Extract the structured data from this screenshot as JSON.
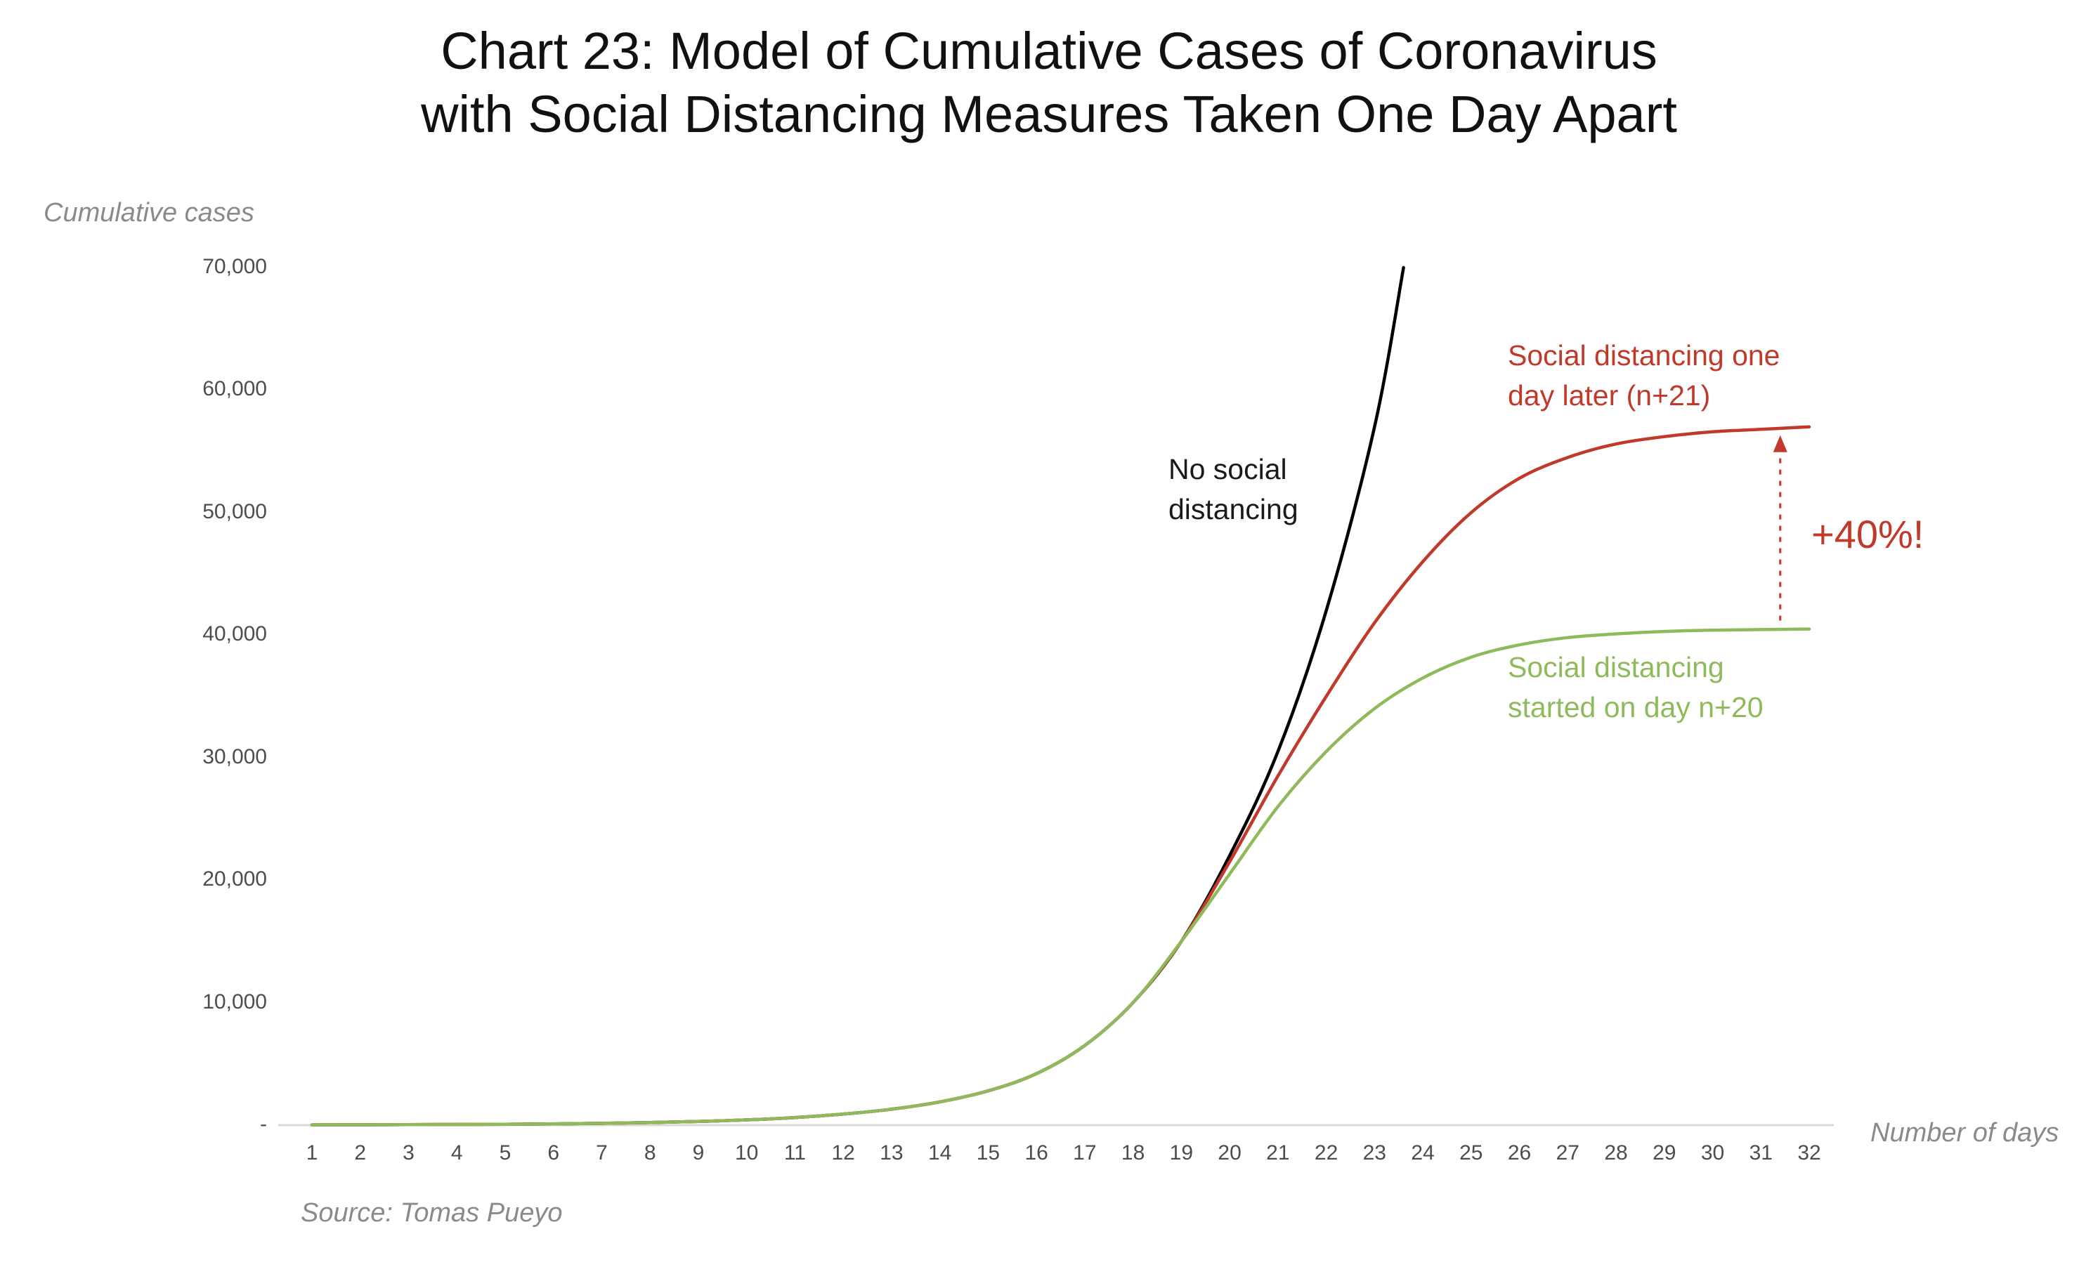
{
  "page": {
    "title_line1": "Chart 23: Model of Cumulative Cases of Coronavirus",
    "title_line2": "with Social Distancing Measures Taken One Day Apart",
    "source": "Source: Tomas Pueyo"
  },
  "colors": {
    "black": "#000000",
    "red": "#c0392b",
    "green": "#8fba5b",
    "axis_text": "#4d4d4d",
    "muted_text": "#8a8a8a",
    "baseline": "#d9d9d9"
  },
  "chart_data": {
    "type": "line",
    "title": "Chart 23: Model of Cumulative Cases of Coronavirus with Social Distancing Measures Taken One Day Apart",
    "xlabel": "Number of days",
    "ylabel": "Cumulative cases",
    "xlim": [
      1,
      32
    ],
    "ylim": [
      0,
      70000
    ],
    "grid": false,
    "legend_position": "none",
    "x_ticks": [
      "1",
      "2",
      "3",
      "4",
      "5",
      "6",
      "7",
      "8",
      "9",
      "10",
      "11",
      "12",
      "13",
      "14",
      "15",
      "16",
      "17",
      "18",
      "19",
      "20",
      "21",
      "22",
      "23",
      "24",
      "25",
      "26",
      "27",
      "28",
      "29",
      "30",
      "31",
      "32"
    ],
    "y_ticks": [
      {
        "label": "70,000",
        "value": 70000
      },
      {
        "label": "60,000",
        "value": 60000
      },
      {
        "label": "50,000",
        "value": 50000
      },
      {
        "label": "40,000",
        "value": 40000
      },
      {
        "label": "30,000",
        "value": 30000
      },
      {
        "label": "20,000",
        "value": 20000
      },
      {
        "label": "10,000",
        "value": 10000
      },
      {
        "label": "-",
        "value": 0
      }
    ],
    "series": [
      {
        "name": "No social distancing",
        "color_key": "black",
        "points": [
          [
            1,
            22
          ],
          [
            2,
            30
          ],
          [
            3,
            40
          ],
          [
            4,
            55
          ],
          [
            5,
            75
          ],
          [
            6,
            105
          ],
          [
            7,
            150
          ],
          [
            8,
            210
          ],
          [
            9,
            300
          ],
          [
            10,
            430
          ],
          [
            11,
            620
          ],
          [
            12,
            900
          ],
          [
            13,
            1300
          ],
          [
            14,
            1900
          ],
          [
            15,
            2800
          ],
          [
            16,
            4200
          ],
          [
            17,
            6500
          ],
          [
            18,
            10000
          ],
          [
            19,
            15000
          ],
          [
            20,
            22000
          ],
          [
            21,
            30500
          ],
          [
            22,
            42000
          ],
          [
            23,
            57000
          ],
          [
            23.6,
            70000
          ]
        ]
      },
      {
        "name": "Social distancing one day later (n+21)",
        "color_key": "red",
        "points": [
          [
            1,
            22
          ],
          [
            2,
            30
          ],
          [
            3,
            40
          ],
          [
            4,
            55
          ],
          [
            5,
            75
          ],
          [
            6,
            105
          ],
          [
            7,
            150
          ],
          [
            8,
            210
          ],
          [
            9,
            300
          ],
          [
            10,
            430
          ],
          [
            11,
            620
          ],
          [
            12,
            900
          ],
          [
            13,
            1300
          ],
          [
            14,
            1900
          ],
          [
            15,
            2800
          ],
          [
            16,
            4200
          ],
          [
            17,
            6500
          ],
          [
            18,
            10000
          ],
          [
            19,
            15000
          ],
          [
            20,
            21500
          ],
          [
            21,
            28500
          ],
          [
            22,
            35000
          ],
          [
            23,
            41000
          ],
          [
            24,
            46000
          ],
          [
            25,
            50000
          ],
          [
            26,
            52800
          ],
          [
            27,
            54500
          ],
          [
            28,
            55600
          ],
          [
            29,
            56200
          ],
          [
            30,
            56600
          ],
          [
            31,
            56800
          ],
          [
            32,
            57000
          ]
        ]
      },
      {
        "name": "Social distancing started on day n+20",
        "color_key": "green",
        "points": [
          [
            1,
            22
          ],
          [
            2,
            30
          ],
          [
            3,
            40
          ],
          [
            4,
            55
          ],
          [
            5,
            75
          ],
          [
            6,
            105
          ],
          [
            7,
            150
          ],
          [
            8,
            210
          ],
          [
            9,
            300
          ],
          [
            10,
            430
          ],
          [
            11,
            620
          ],
          [
            12,
            900
          ],
          [
            13,
            1300
          ],
          [
            14,
            1900
          ],
          [
            15,
            2800
          ],
          [
            16,
            4200
          ],
          [
            17,
            6500
          ],
          [
            18,
            10000
          ],
          [
            19,
            15000
          ],
          [
            20,
            20500
          ],
          [
            21,
            26000
          ],
          [
            22,
            30500
          ],
          [
            23,
            34000
          ],
          [
            24,
            36500
          ],
          [
            25,
            38200
          ],
          [
            26,
            39200
          ],
          [
            27,
            39800
          ],
          [
            28,
            40100
          ],
          [
            29,
            40300
          ],
          [
            30,
            40400
          ],
          [
            31,
            40450
          ],
          [
            32,
            40500
          ]
        ]
      }
    ],
    "annotations": {
      "no_social": [
        "No social",
        "distancing"
      ],
      "red_label": [
        "Social distancing one",
        "day later (n+21)"
      ],
      "green_label": [
        "Social distancing",
        "started on day n+20"
      ],
      "delta": "+40%!",
      "delta_arrow": {
        "day": 31.4,
        "from_value": 40500,
        "to_value": 57000
      }
    }
  }
}
